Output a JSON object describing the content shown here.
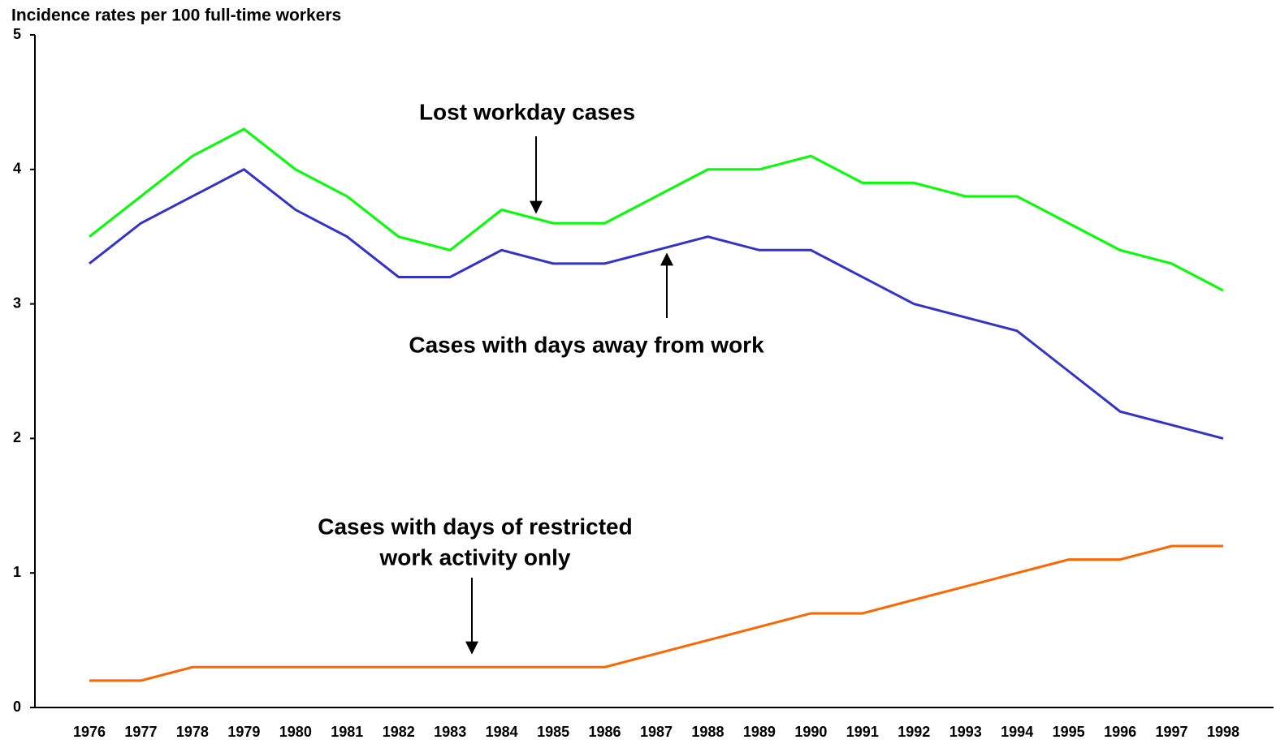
{
  "chart_data": {
    "type": "line",
    "title": "Incidence rates per 100 full-time workers",
    "categories": [
      "1976",
      "1977",
      "1978",
      "1979",
      "1980",
      "1981",
      "1982",
      "1983",
      "1984",
      "1985",
      "1986",
      "1987",
      "1988",
      "1989",
      "1990",
      "1991",
      "1992",
      "1993",
      "1994",
      "1995",
      "1996",
      "1997",
      "1998"
    ],
    "series": [
      {
        "color": "#00ff00",
        "values": [
          3.5,
          3.8,
          4.1,
          4.3,
          4.0,
          3.8,
          3.5,
          3.4,
          3.7,
          3.6,
          3.6,
          3.8,
          4.0,
          4.0,
          4.1,
          3.9,
          3.9,
          3.8,
          3.8,
          3.6,
          3.4,
          3.3,
          3.1
        ]
      },
      {
        "color": "#3333cc",
        "values": [
          3.3,
          3.6,
          3.8,
          4.0,
          3.7,
          3.5,
          3.2,
          3.2,
          3.4,
          3.3,
          3.3,
          3.4,
          3.5,
          3.4,
          3.4,
          3.2,
          3.0,
          2.9,
          2.8,
          2.5,
          2.2,
          2.1,
          2.0
        ]
      },
      {
        "color": "#ff6600",
        "values": [
          0.2,
          0.2,
          0.3,
          0.3,
          0.3,
          0.3,
          0.3,
          0.3,
          0.3,
          0.3,
          0.3,
          0.4,
          0.5,
          0.6,
          0.7,
          0.7,
          0.8,
          0.9,
          1.0,
          1.1,
          1.1,
          1.2,
          1.2
        ]
      }
    ],
    "ylim": [
      0,
      5
    ],
    "yticks": [
      0,
      1,
      2,
      3,
      4,
      5
    ],
    "annotations": [
      {
        "lines": [
          "Lost workday cases"
        ]
      },
      {
        "lines": [
          "Cases with days away from work"
        ]
      },
      {
        "lines": [
          "Cases with days of restricted",
          "work activity only"
        ]
      }
    ]
  }
}
